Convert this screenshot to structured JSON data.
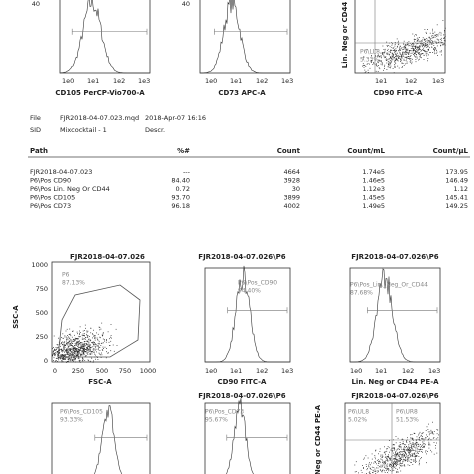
{
  "top_panels": [
    {
      "y_tick": "40",
      "x_ticks": [
        "1e0",
        "1e1",
        "1e2",
        "1e3"
      ],
      "x_label": "CD105 PerCP-Vio700-A"
    },
    {
      "y_tick": "40",
      "x_ticks": [
        "1e0",
        "1e1",
        "1e2",
        "1e3"
      ],
      "x_label": "CD73 APC-A"
    },
    {
      "y_label": "Lin. Neg or CD44",
      "gate_name": "P6\\LL8",
      "gate_pct": "5.33%",
      "x_ticks": [
        "1e1",
        "1e2",
        "1e3"
      ],
      "x_label": "CD90 FITC-A"
    }
  ],
  "info": {
    "file_label": "File",
    "file": "FJR2018-04-07.023.mqd",
    "date": "2018-Apr-07 16:16",
    "sid_label": "SID",
    "sid": "Mixcocktail - 1",
    "descr": "Descr."
  },
  "table": {
    "columns": [
      "Path",
      "%#",
      "Count",
      "Count/mL",
      "Count/µL"
    ],
    "rows": [
      [
        "FJR2018-04-07.023",
        "---",
        "4664",
        "1.74e5",
        "173.95"
      ],
      [
        "P6\\Pos CD90",
        "84.40",
        "3928",
        "1.46e5",
        "146.49"
      ],
      [
        "P6\\Pos Lin. Neg Or CD44",
        "0.72",
        "30",
        "1.12e3",
        "1.12"
      ],
      [
        "P6\\Pos CD105",
        "93.70",
        "3899",
        "1.45e5",
        "145.41"
      ],
      [
        "P6\\Pos CD73",
        "96.18",
        "4002",
        "1.49e5",
        "149.25"
      ]
    ]
  },
  "middle_panels": [
    {
      "title": "FJR2018-04-07.026",
      "gate_name": "P6",
      "gate_pct": "87.13%",
      "y_label": "SSC-A",
      "y_ticks": [
        "1000",
        "750",
        "500",
        "250",
        "0"
      ],
      "x_ticks": [
        "0",
        "250",
        "500",
        "750",
        "1000"
      ],
      "x_label": "FSC-A"
    },
    {
      "title": "FJR2018-04-07.026\\P6",
      "gate_name": "P6\\Pos_CD90",
      "gate_pct": "94.40%",
      "x_ticks": [
        "1e0",
        "1e1",
        "1e2",
        "1e3"
      ],
      "x_label": "CD90 FITC-A"
    },
    {
      "title": "FJR2018-04-07.026\\P6",
      "gate_name": "P6\\Pos_Lin._Neg_Or_CD44",
      "gate_pct": "87.68%",
      "x_ticks": [
        "1e0",
        "1e1",
        "1e2",
        "1e3"
      ],
      "x_label": "Lin. Neg or CD44 PE-A"
    }
  ],
  "bottom_panels": [
    {
      "gate_name": "P6\\Pos_CD105",
      "gate_pct": "93.33%"
    },
    {
      "title": "FJR2018-04-07.026\\P6",
      "gate_name": "P6\\Pos_CD73",
      "gate_pct": "95.67%"
    },
    {
      "title": "FJR2018-04-07.026\\P6",
      "y_label": "Neg or CD44 PE-A",
      "gate_name": "P6\\UL8",
      "gate_pct": "5.02%",
      "gate2_name": "P6\\UR8",
      "gate2_pct": "51.53%"
    }
  ]
}
